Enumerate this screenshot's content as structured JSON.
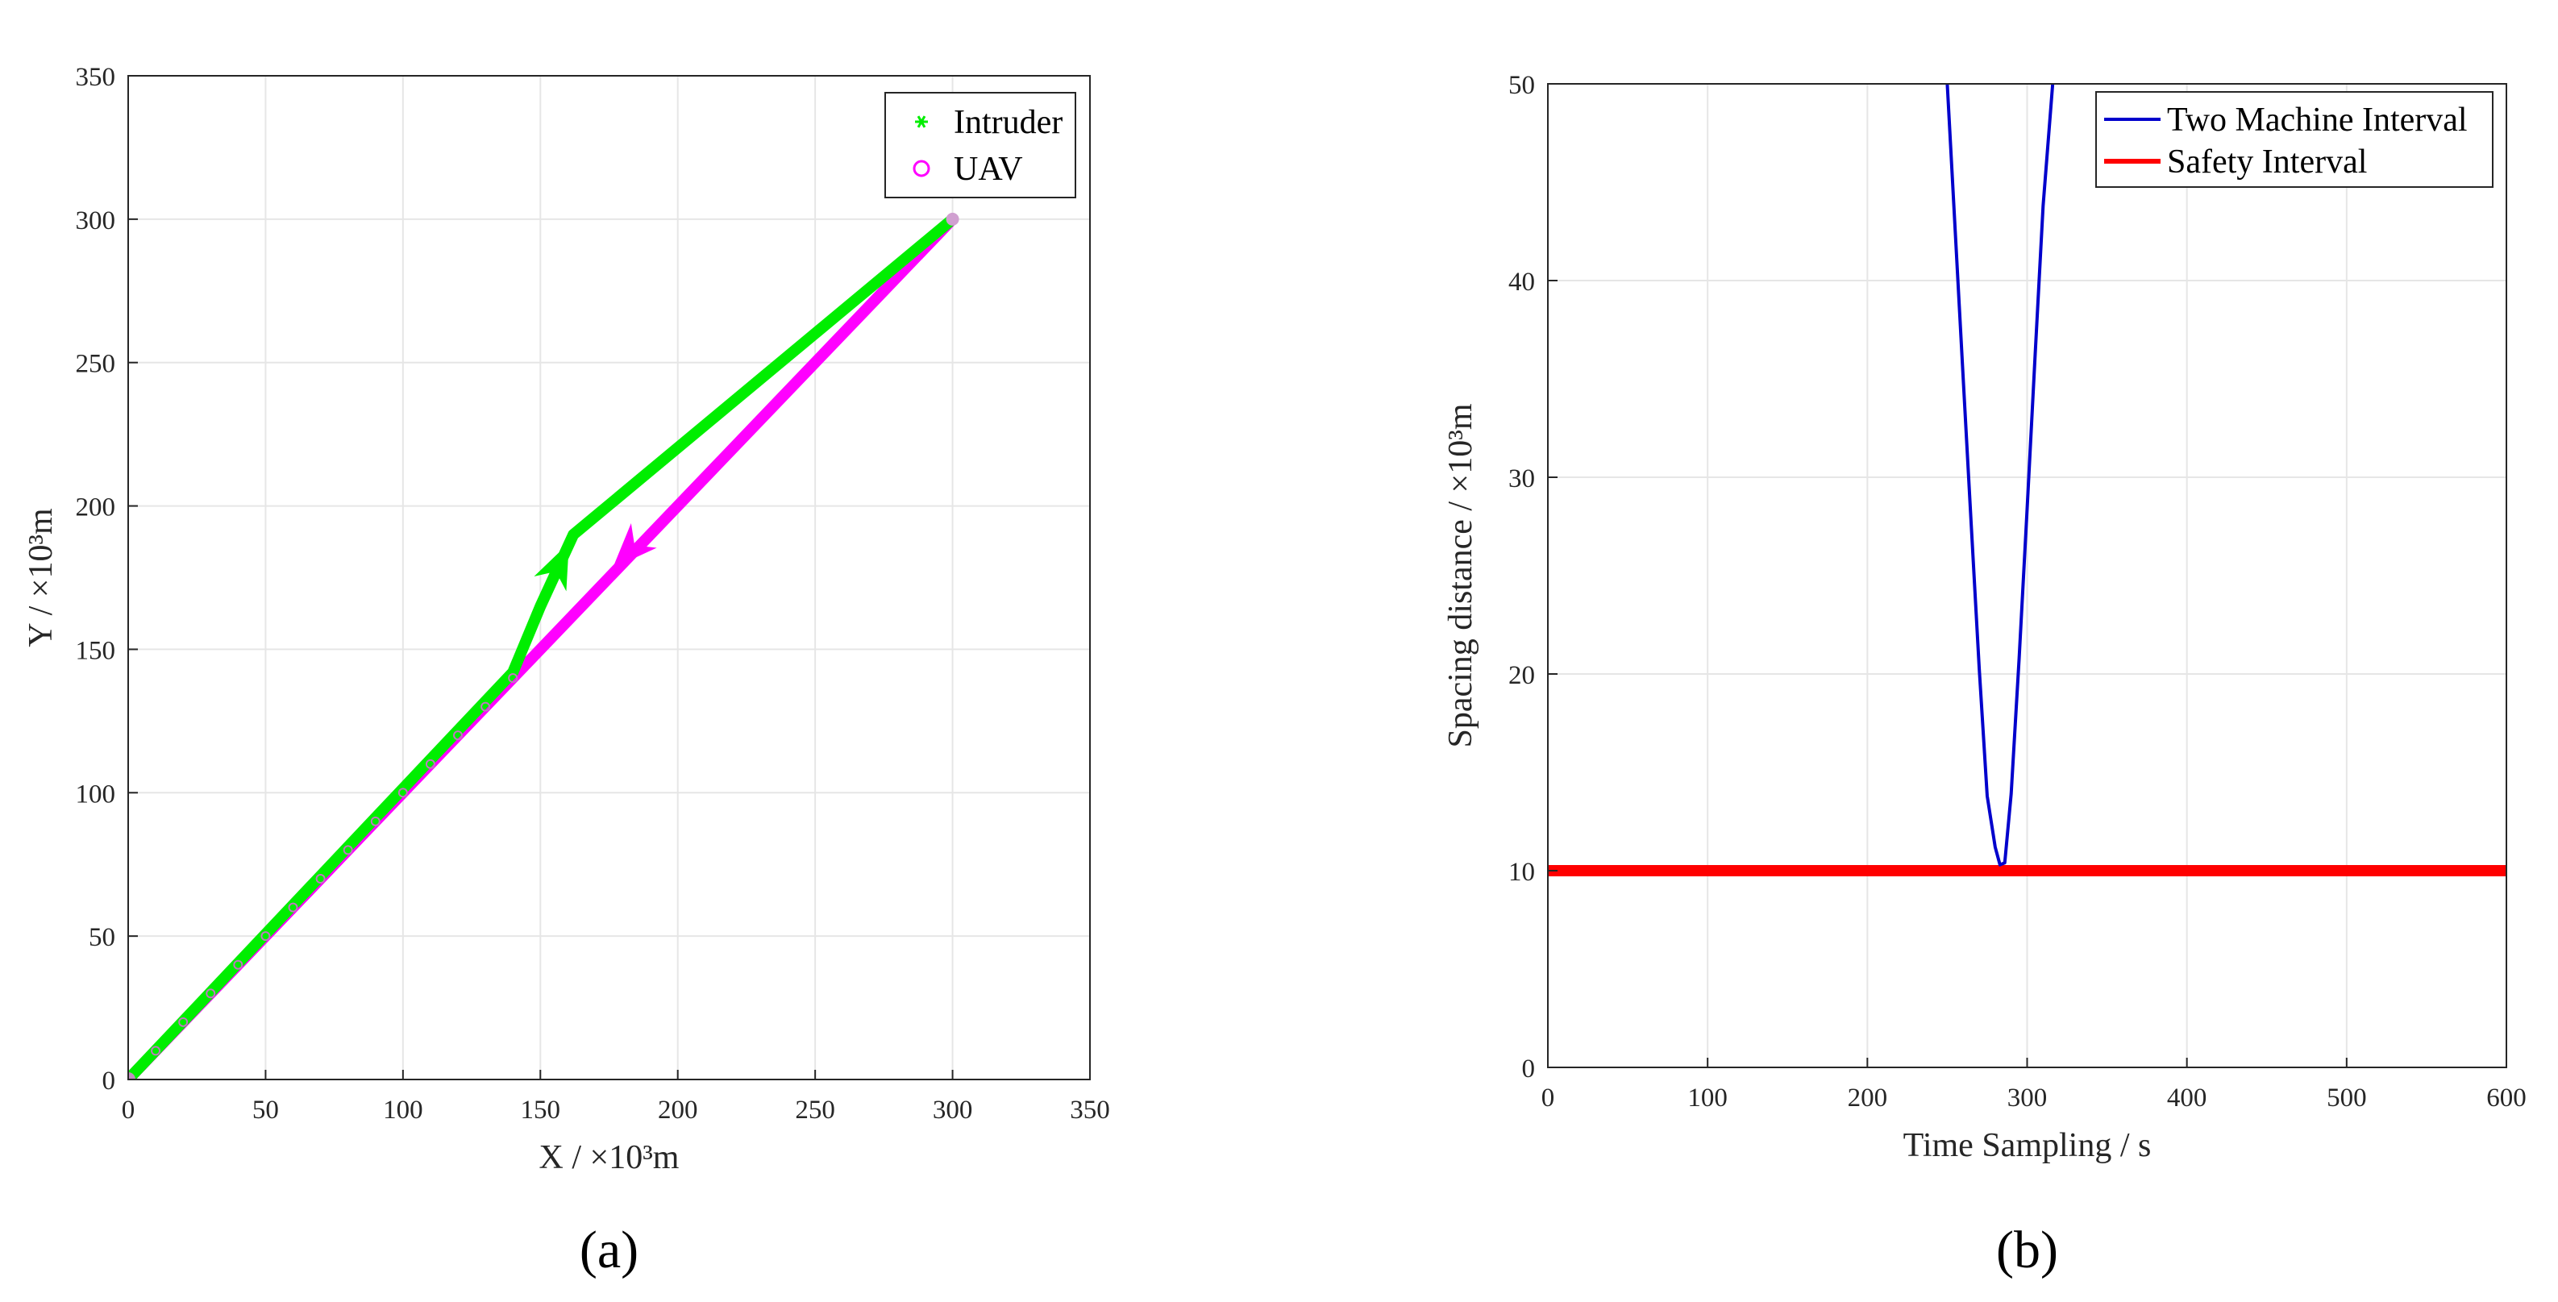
{
  "chart_data": [
    {
      "type": "line",
      "panel_label": "(a)",
      "xlabel": "X / ×10³m",
      "ylabel": "Y / ×10³m",
      "xlim": [
        0,
        350
      ],
      "ylim": [
        0,
        350
      ],
      "xticks": [
        0,
        50,
        100,
        150,
        200,
        250,
        300,
        350
      ],
      "yticks": [
        0,
        50,
        100,
        150,
        200,
        250,
        300,
        350
      ],
      "grid": true,
      "legend_position": "top-right",
      "series": [
        {
          "name": "Intruder",
          "color": "#00ee00",
          "marker": "asterisk",
          "points": [
            [
              0,
              0
            ],
            [
              140,
              142
            ],
            [
              150,
              165
            ],
            [
              162,
              190
            ],
            [
              300,
              300
            ]
          ],
          "arrows": [
            {
              "at": [
                157,
                180
              ],
              "direction": "forward"
            }
          ]
        },
        {
          "name": "UAV",
          "color": "#ff00ff",
          "marker": "circle",
          "points": [
            [
              300,
              300
            ],
            [
              0,
              0
            ]
          ],
          "arrows": [
            {
              "at": [
                182,
                184
              ],
              "direction": "forward"
            }
          ]
        }
      ]
    },
    {
      "type": "line",
      "panel_label": "(b)",
      "xlabel": "Time Sampling / s",
      "ylabel": "Spacing distance / ×10³m",
      "xlim": [
        0,
        600
      ],
      "ylim": [
        0,
        50
      ],
      "xticks": [
        0,
        100,
        200,
        300,
        400,
        500,
        600
      ],
      "yticks": [
        0,
        10,
        20,
        30,
        40,
        50
      ],
      "grid": true,
      "legend_position": "top-right",
      "series": [
        {
          "name": "Two Machine Interval",
          "color": "#0000cc",
          "x": [
            250,
            255,
            260,
            265,
            270,
            275,
            280,
            283,
            286,
            290,
            295,
            300,
            305,
            310,
            316
          ],
          "y": [
            50,
            42.5,
            35,
            27.6,
            20.3,
            13.8,
            11.2,
            10.3,
            10.4,
            13.9,
            20.8,
            28.4,
            36.2,
            43.8,
            50
          ]
        },
        {
          "name": "Safety Interval",
          "color": "#ff0000",
          "x": [
            0,
            600
          ],
          "y": [
            10,
            10
          ]
        }
      ]
    }
  ]
}
